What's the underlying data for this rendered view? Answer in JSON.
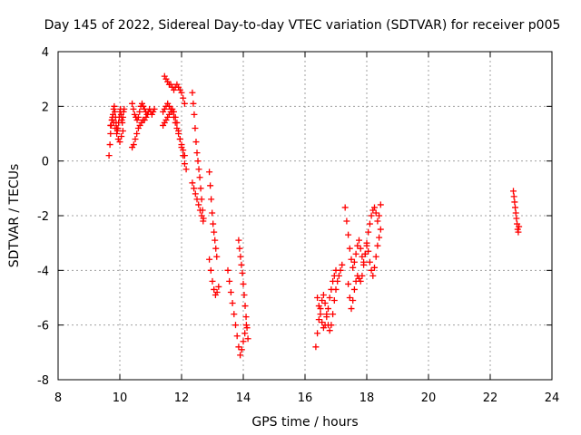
{
  "chart_data": {
    "type": "scatter",
    "title": "Day 145 of 2022, Sidereal Day-to-day VTEC variation (SDTVAR) for receiver p005",
    "xlabel": "GPS time / hours",
    "ylabel": "SDTVAR / TECUs",
    "xlim": [
      8,
      24
    ],
    "ylim": [
      -8,
      4
    ],
    "xticks": [
      8,
      10,
      12,
      14,
      16,
      18,
      20,
      22,
      24
    ],
    "yticks": [
      -8,
      -6,
      -4,
      -2,
      0,
      2,
      4
    ],
    "grid": true,
    "marker": "+",
    "color": "#ff0000",
    "series": [
      {
        "name": "SDTVAR p005",
        "x": [
          9.65,
          9.68,
          9.7,
          9.72,
          9.74,
          9.76,
          9.78,
          9.8,
          9.82,
          9.84,
          9.86,
          9.88,
          9.9,
          9.92,
          9.94,
          9.96,
          9.98,
          10.0,
          10.02,
          10.04,
          10.06,
          10.08,
          10.1,
          10.12,
          10.14,
          9.7,
          9.75,
          9.8,
          9.85,
          9.9,
          9.95,
          10.0,
          10.05,
          10.1,
          10.4,
          10.44,
          10.48,
          10.52,
          10.56,
          10.6,
          10.64,
          10.68,
          10.72,
          10.76,
          10.8,
          10.84,
          10.88,
          10.92,
          10.96,
          11.0,
          11.04,
          11.08,
          11.12,
          10.4,
          10.45,
          10.5,
          10.55,
          10.6,
          10.65,
          10.7,
          10.75,
          10.8,
          10.85,
          10.9,
          11.45,
          11.5,
          11.55,
          11.6,
          11.65,
          11.7,
          11.75,
          11.8,
          11.85,
          11.9,
          11.95,
          12.0,
          12.05,
          12.1,
          11.4,
          11.45,
          11.5,
          11.55,
          11.6,
          11.65,
          11.7,
          11.75,
          11.8,
          11.85,
          11.9,
          11.95,
          12.0,
          12.05,
          12.1,
          11.4,
          11.45,
          11.5,
          11.55,
          11.6,
          11.65,
          11.7,
          11.75,
          11.8,
          11.85,
          11.9,
          11.95,
          12.0,
          12.05,
          12.1,
          12.15,
          12.35,
          12.38,
          12.41,
          12.44,
          12.47,
          12.5,
          12.53,
          12.56,
          12.59,
          12.62,
          12.65,
          12.68,
          12.71,
          12.35,
          12.4,
          12.45,
          12.5,
          12.55,
          12.6,
          12.65,
          12.7,
          12.9,
          12.93,
          12.96,
          12.99,
          13.02,
          13.05,
          13.08,
          13.11,
          13.14,
          12.9,
          12.95,
          13.0,
          13.05,
          13.1,
          13.15,
          13.2,
          13.5,
          13.55,
          13.6,
          13.65,
          13.7,
          13.75,
          13.8,
          13.85,
          13.9,
          13.95,
          14.0,
          14.05,
          14.1,
          13.85,
          13.88,
          13.91,
          13.94,
          13.97,
          14.0,
          14.03,
          14.06,
          14.09,
          14.12,
          14.15,
          16.35,
          16.4,
          16.45,
          16.5,
          16.55,
          16.6,
          16.65,
          16.7,
          16.75,
          16.8,
          16.85,
          16.9,
          16.95,
          17.0,
          17.05,
          17.1,
          17.15,
          17.2,
          16.4,
          16.45,
          16.5,
          16.55,
          16.6,
          16.65,
          16.7,
          16.75,
          16.8,
          16.85,
          16.9,
          16.95,
          17.0,
          17.3,
          17.35,
          17.4,
          17.45,
          17.5,
          17.55,
          17.6,
          17.65,
          17.7,
          17.75,
          17.8,
          17.85,
          17.9,
          17.95,
          18.0,
          18.05,
          18.1,
          18.15,
          18.2,
          18.25,
          18.3,
          18.35,
          18.4,
          18.45,
          17.4,
          17.45,
          17.5,
          17.55,
          17.6,
          17.65,
          17.7,
          17.75,
          17.8,
          17.85,
          17.9,
          17.95,
          18.0,
          18.05,
          18.1,
          18.15,
          18.2,
          18.25,
          18.3,
          18.35,
          18.4,
          18.45,
          22.75,
          22.77,
          22.79,
          22.81,
          22.83,
          22.85,
          22.87,
          22.89,
          22.91,
          22.93
        ],
        "y": [
          0.2,
          0.6,
          1.0,
          1.3,
          1.5,
          1.6,
          1.7,
          1.9,
          2.0,
          1.8,
          1.6,
          1.4,
          1.2,
          1.1,
          1.2,
          1.4,
          1.6,
          1.8,
          1.9,
          1.7,
          1.5,
          1.4,
          1.6,
          1.8,
          1.9,
          1.3,
          1.5,
          1.4,
          1.2,
          1.0,
          0.8,
          0.7,
          0.9,
          1.1,
          2.1,
          1.9,
          1.7,
          1.6,
          1.5,
          1.6,
          1.8,
          2.0,
          2.1,
          2.0,
          1.9,
          1.8,
          1.7,
          1.8,
          1.9,
          1.8,
          1.7,
          1.8,
          1.9,
          0.5,
          0.6,
          0.8,
          1.0,
          1.2,
          1.3,
          1.4,
          1.5,
          1.5,
          1.6,
          1.7,
          3.1,
          3.0,
          2.9,
          2.8,
          2.8,
          2.7,
          2.6,
          2.7,
          2.8,
          2.7,
          2.6,
          2.5,
          2.3,
          2.1,
          1.8,
          1.9,
          2.0,
          2.1,
          2.0,
          1.9,
          1.8,
          1.6,
          1.4,
          1.2,
          1.0,
          0.8,
          0.6,
          0.4,
          0.2,
          1.3,
          1.4,
          1.5,
          1.6,
          1.7,
          1.8,
          1.9,
          1.8,
          1.6,
          1.4,
          1.1,
          0.8,
          0.5,
          0.2,
          -0.1,
          -0.3,
          2.5,
          2.1,
          1.7,
          1.2,
          0.7,
          0.3,
          0.0,
          -0.3,
          -0.6,
          -1.0,
          -1.4,
          -1.8,
          -2.1,
          -0.8,
          -1.0,
          -1.2,
          -1.4,
          -1.6,
          -1.8,
          -2.0,
          -2.2,
          -0.4,
          -0.9,
          -1.4,
          -1.9,
          -2.3,
          -2.6,
          -2.9,
          -3.2,
          -3.5,
          -3.6,
          -4.0,
          -4.4,
          -4.7,
          -4.9,
          -4.8,
          -4.6,
          -4.0,
          -4.4,
          -4.8,
          -5.2,
          -5.6,
          -6.0,
          -6.4,
          -6.8,
          -7.1,
          -6.9,
          -6.6,
          -6.3,
          -6.0,
          -2.9,
          -3.2,
          -3.5,
          -3.8,
          -4.1,
          -4.5,
          -4.9,
          -5.3,
          -5.7,
          -6.1,
          -6.5,
          -6.8,
          -6.3,
          -5.8,
          -5.4,
          -5.1,
          -4.9,
          -5.2,
          -5.6,
          -6.0,
          -6.2,
          -6.0,
          -5.6,
          -5.1,
          -4.7,
          -4.4,
          -4.2,
          -4.0,
          -3.8,
          -5.0,
          -5.3,
          -5.6,
          -5.9,
          -6.1,
          -6.0,
          -5.7,
          -5.4,
          -5.0,
          -4.7,
          -4.4,
          -4.2,
          -4.0,
          -1.7,
          -2.2,
          -2.7,
          -3.2,
          -3.6,
          -3.9,
          -3.7,
          -3.4,
          -3.1,
          -2.9,
          -3.2,
          -3.5,
          -3.7,
          -3.4,
          -3.0,
          -2.6,
          -2.3,
          -2.0,
          -1.8,
          -1.7,
          -1.9,
          -2.2,
          -2.0,
          -1.6,
          -4.5,
          -5.0,
          -5.4,
          -5.1,
          -4.7,
          -4.4,
          -4.2,
          -4.3,
          -4.4,
          -4.2,
          -3.8,
          -3.4,
          -3.1,
          -3.3,
          -3.7,
          -4.0,
          -4.2,
          -3.9,
          -3.5,
          -3.1,
          -2.8,
          -2.5,
          -1.1,
          -1.3,
          -1.5,
          -1.7,
          -1.9,
          -2.1,
          -2.3,
          -2.5,
          -2.6,
          -2.4
        ]
      }
    ]
  }
}
